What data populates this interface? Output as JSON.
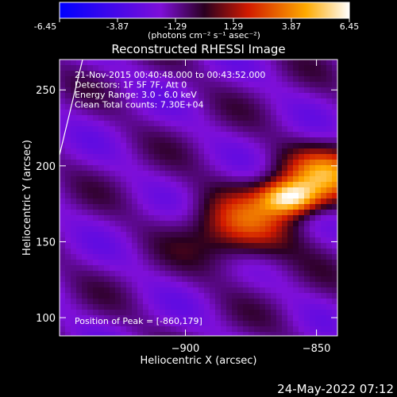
{
  "chart_data": {
    "type": "heatmap",
    "title": "Reconstructed RHESSI Image",
    "xlabel": "Heliocentric X (arcsec)",
    "ylabel": "Heliocentric Y (arcsec)",
    "xlim": [
      -948,
      -842
    ],
    "ylim": [
      88,
      270
    ],
    "x_ticks": [
      -900,
      -850,
      -800
    ],
    "y_ticks": [
      100,
      150,
      200,
      250
    ],
    "colorbar": {
      "label": "(photons cm⁻² s⁻¹ asec⁻²)",
      "ticks": [
        "-6.45",
        "-3.87",
        "-1.29",
        "1.29",
        "3.87",
        "6.45"
      ],
      "range": [
        -6.45,
        6.45
      ]
    },
    "annotations": [
      "21-Nov-2015 00:40:48.000 to 00:43:52.000",
      "Detectors: 1F 5F 7F, Att 0",
      "Energy Range: 3.0 - 6.0 keV",
      "Clean     Total counts: 7.30E+04"
    ],
    "peak_label": "Position of Peak = [-860,179]",
    "peak": [
      -860,
      179
    ],
    "sources": [
      {
        "x": -860,
        "y": 179,
        "amp": 6.45,
        "sx": 8,
        "sy": 8
      },
      {
        "x": -845,
        "y": 195,
        "amp": 4.6,
        "sx": 12,
        "sy": 12
      },
      {
        "x": -878,
        "y": 160,
        "amp": 3.4,
        "sx": 14,
        "sy": 16
      },
      {
        "x": -815,
        "y": 92,
        "amp": 4.2,
        "sx": 12,
        "sy": 10
      }
    ],
    "background": -1.6,
    "grid": false
  },
  "footer": {
    "timestamp": "24-May-2022 07:12"
  }
}
